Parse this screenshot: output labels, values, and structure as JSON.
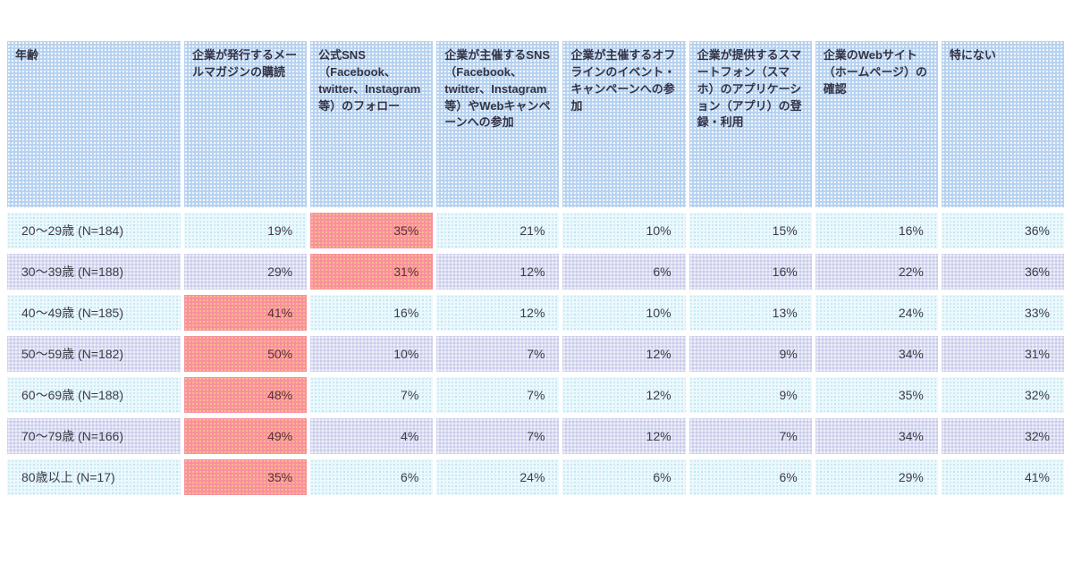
{
  "table": {
    "columns": [
      {
        "label": "年齢"
      },
      {
        "label": "企業が発行するメールマガジンの購読"
      },
      {
        "label": "公式SNS（Facebook、twitter、Instagram等）のフォロー"
      },
      {
        "label": "企業が主催するSNS（Facebook、twitter、Instagram等）やWebキャンペーンへの参加"
      },
      {
        "label": "企業が主催するオフラインのイベント・キャンペーンへの参加"
      },
      {
        "label": "企業が提供するスマートフォン（スマホ）のアプリケーション（アプリ）の登録・利用"
      },
      {
        "label": "企業のWebサイト（ホームページ）の確認"
      },
      {
        "label": "特にない"
      }
    ],
    "rows": [
      {
        "label": "20〜29歳 (N=184)",
        "values": [
          "19%",
          "35%",
          "21%",
          "10%",
          "15%",
          "16%",
          "36%"
        ],
        "highlight_index": 1
      },
      {
        "label": "30〜39歳 (N=188)",
        "values": [
          "29%",
          "31%",
          "12%",
          "6%",
          "16%",
          "22%",
          "36%"
        ],
        "highlight_index": 1
      },
      {
        "label": "40〜49歳 (N=185)",
        "values": [
          "41%",
          "16%",
          "12%",
          "10%",
          "13%",
          "24%",
          "33%"
        ],
        "highlight_index": 0
      },
      {
        "label": "50〜59歳 (N=182)",
        "values": [
          "50%",
          "10%",
          "7%",
          "12%",
          "9%",
          "34%",
          "31%"
        ],
        "highlight_index": 0
      },
      {
        "label": "60〜69歳 (N=188)",
        "values": [
          "48%",
          "7%",
          "7%",
          "12%",
          "9%",
          "35%",
          "32%"
        ],
        "highlight_index": 0
      },
      {
        "label": "70〜79歳 (N=166)",
        "values": [
          "49%",
          "4%",
          "7%",
          "12%",
          "7%",
          "34%",
          "32%"
        ],
        "highlight_index": 0
      },
      {
        "label": "80歳以上 (N=17)",
        "values": [
          "35%",
          "6%",
          "24%",
          "6%",
          "6%",
          "29%",
          "41%"
        ],
        "highlight_index": 0
      }
    ]
  },
  "colors": {
    "page_background": "#ffffff",
    "header_cell": "#b5d1f0",
    "row_odd": "#ecf9fc",
    "row_even": "#d9def1",
    "highlight_cell": "#f8909d",
    "highlight_dots": "#fcc288",
    "text": "#3c3c46",
    "cell_gap": "#ffffff"
  },
  "chart_data": {
    "type": "table",
    "row_header": "年齢",
    "columns": [
      "企業が発行するメールマガジンの購読",
      "公式SNS（Facebook、twitter、Instagram等）のフォロー",
      "企業が主催するSNS（Facebook、twitter、Instagram等）やWebキャンペーンへの参加",
      "企業が主催するオフラインのイベント・キャンペーンへの参加",
      "企業が提供するスマートフォン（スマホ）のアプリケーション（アプリ）の登録・利用",
      "企業のWebサイト（ホームページ）の確認",
      "特にない"
    ],
    "rows": [
      {
        "age_group": "20〜29歳",
        "n": 184,
        "values_percent": [
          19,
          35,
          21,
          10,
          15,
          16,
          36
        ],
        "highlighted_column": "公式SNS（Facebook、twitter、Instagram等）のフォロー"
      },
      {
        "age_group": "30〜39歳",
        "n": 188,
        "values_percent": [
          29,
          31,
          12,
          6,
          16,
          22,
          36
        ],
        "highlighted_column": "公式SNS（Facebook、twitter、Instagram等）のフォロー"
      },
      {
        "age_group": "40〜49歳",
        "n": 185,
        "values_percent": [
          41,
          16,
          12,
          10,
          13,
          24,
          33
        ],
        "highlighted_column": "企業が発行するメールマガジンの購読"
      },
      {
        "age_group": "50〜59歳",
        "n": 182,
        "values_percent": [
          50,
          10,
          7,
          12,
          9,
          34,
          31
        ],
        "highlighted_column": "企業が発行するメールマガジンの購読"
      },
      {
        "age_group": "60〜69歳",
        "n": 188,
        "values_percent": [
          48,
          7,
          7,
          12,
          9,
          35,
          32
        ],
        "highlighted_column": "企業が発行するメールマガジンの購読"
      },
      {
        "age_group": "70〜79歳",
        "n": 166,
        "values_percent": [
          49,
          4,
          7,
          12,
          7,
          34,
          32
        ],
        "highlighted_column": "企業が発行するメールマガジンの購読"
      },
      {
        "age_group": "80歳以上",
        "n": 17,
        "values_percent": [
          35,
          6,
          24,
          6,
          6,
          29,
          41
        ],
        "highlighted_column": "企業が発行するメールマガジンの購読"
      }
    ],
    "notes": "Pink dotted cells mark the highlighted (top) value in each age-group row; header and body cells use dotted-pattern fills; rows alternate light cyan / light periwinkle."
  }
}
